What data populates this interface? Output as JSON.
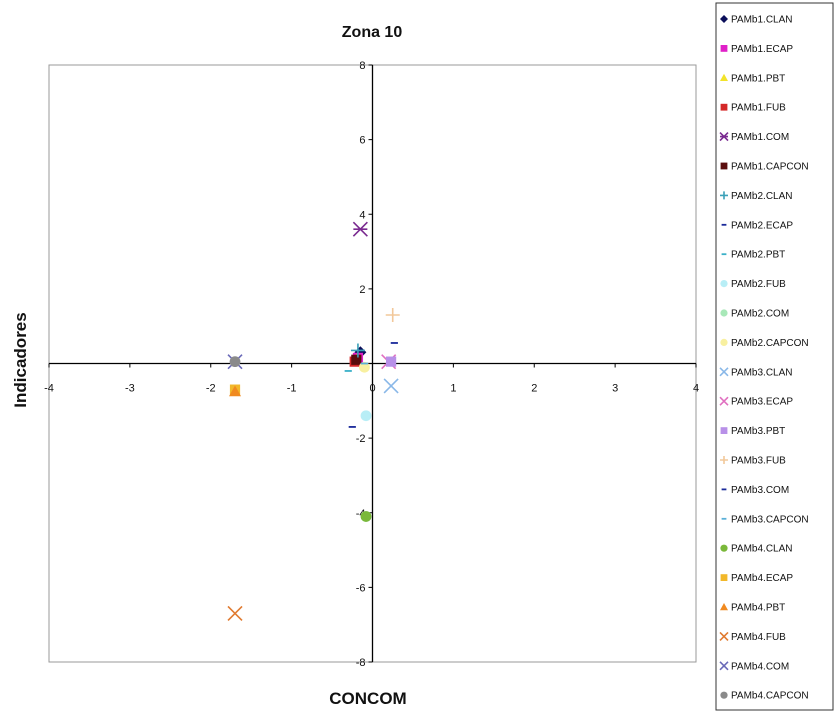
{
  "chart_data": {
    "type": "scatter",
    "title": "Zona 10",
    "xlabel": "CONCOM",
    "ylabel": "Indicadores",
    "xlim": [
      -4,
      4
    ],
    "ylim": [
      -8,
      8
    ],
    "xticks": [
      "-4",
      "-3",
      "-2",
      "-1",
      "0",
      "1",
      "2",
      "3",
      "4"
    ],
    "yticks": [
      "-8",
      "-6",
      "-4",
      "-2",
      "",
      "2",
      "4",
      "6",
      "8"
    ],
    "grid": false,
    "legend_position": "right",
    "series": [
      {
        "name": "PAMb1.CLAN",
        "color": "#0b0f5a",
        "marker": "diamond",
        "x": -0.15,
        "y": 0.3
      },
      {
        "name": "PAMb1.ECAP",
        "color": "#e020c8",
        "marker": "square",
        "x": -0.18,
        "y": 0.15
      },
      {
        "name": "PAMb1.PBT",
        "color": "#f2e32a",
        "marker": "triangle",
        "x": -0.2,
        "y": 0.1
      },
      {
        "name": "PAMb1.FUB",
        "color": "#d42828",
        "marker": "square",
        "x": -0.22,
        "y": 0.05
      },
      {
        "name": "PAMb1.COM",
        "color": "#7a2a90",
        "marker": "asterisk",
        "x": -0.15,
        "y": 3.6
      },
      {
        "name": "PAMb1.CAPCON",
        "color": "#5a0d0d",
        "marker": "square",
        "x": -0.2,
        "y": 0.1
      },
      {
        "name": "PAMb2.CLAN",
        "color": "#3aa0b8",
        "marker": "plus",
        "x": -0.18,
        "y": 0.35
      },
      {
        "name": "PAMb2.ECAP",
        "color": "#1a2a9a",
        "marker": "dash",
        "x": -0.25,
        "y": -1.7
      },
      {
        "name": "PAMb2.PBT",
        "color": "#3ab0c8",
        "marker": "dash",
        "x": -0.3,
        "y": -0.2
      },
      {
        "name": "PAMb2.FUB",
        "color": "#b8eef6",
        "marker": "circle",
        "x": -0.08,
        "y": -1.4
      },
      {
        "name": "PAMb2.COM",
        "color": "#a8e8b8",
        "marker": "circle",
        "x": -0.08,
        "y": -4.1
      },
      {
        "name": "PAMb2.CAPCON",
        "color": "#f8f0a0",
        "marker": "circle",
        "x": -0.1,
        "y": -0.1
      },
      {
        "name": "PAMb3.CLAN",
        "color": "#8ab8e8",
        "marker": "x",
        "x": 0.23,
        "y": -0.6
      },
      {
        "name": "PAMb3.ECAP",
        "color": "#e070c0",
        "marker": "x",
        "x": 0.2,
        "y": 0.05
      },
      {
        "name": "PAMb3.PBT",
        "color": "#b890e8",
        "marker": "square",
        "x": 0.23,
        "y": 0.05
      },
      {
        "name": "PAMb3.FUB",
        "color": "#f2c89a",
        "marker": "plus",
        "x": 0.25,
        "y": 1.3
      },
      {
        "name": "PAMb3.COM",
        "color": "#1a2a9a",
        "marker": "dash",
        "x": 0.27,
        "y": 0.55
      },
      {
        "name": "PAMb3.CAPCON",
        "color": "#5ab0d8",
        "marker": "dash",
        "x": -0.1,
        "y": 0.0
      },
      {
        "name": "PAMb4.CLAN",
        "color": "#7ab83a",
        "marker": "circle",
        "x": -0.08,
        "y": -4.1
      },
      {
        "name": "PAMb4.ECAP",
        "color": "#f2b82a",
        "marker": "square",
        "x": -1.7,
        "y": -0.7
      },
      {
        "name": "PAMb4.PBT",
        "color": "#f08a20",
        "marker": "triangle",
        "x": -1.7,
        "y": -0.75
      },
      {
        "name": "PAMb4.FUB",
        "color": "#e07a30",
        "marker": "x",
        "x": -1.7,
        "y": -6.7
      },
      {
        "name": "PAMb4.COM",
        "color": "#6a6ab8",
        "marker": "x",
        "x": -1.7,
        "y": 0.05
      },
      {
        "name": "PAMb4.CAPCON",
        "color": "#8a8a8a",
        "marker": "circle",
        "x": -1.7,
        "y": 0.05
      }
    ]
  }
}
